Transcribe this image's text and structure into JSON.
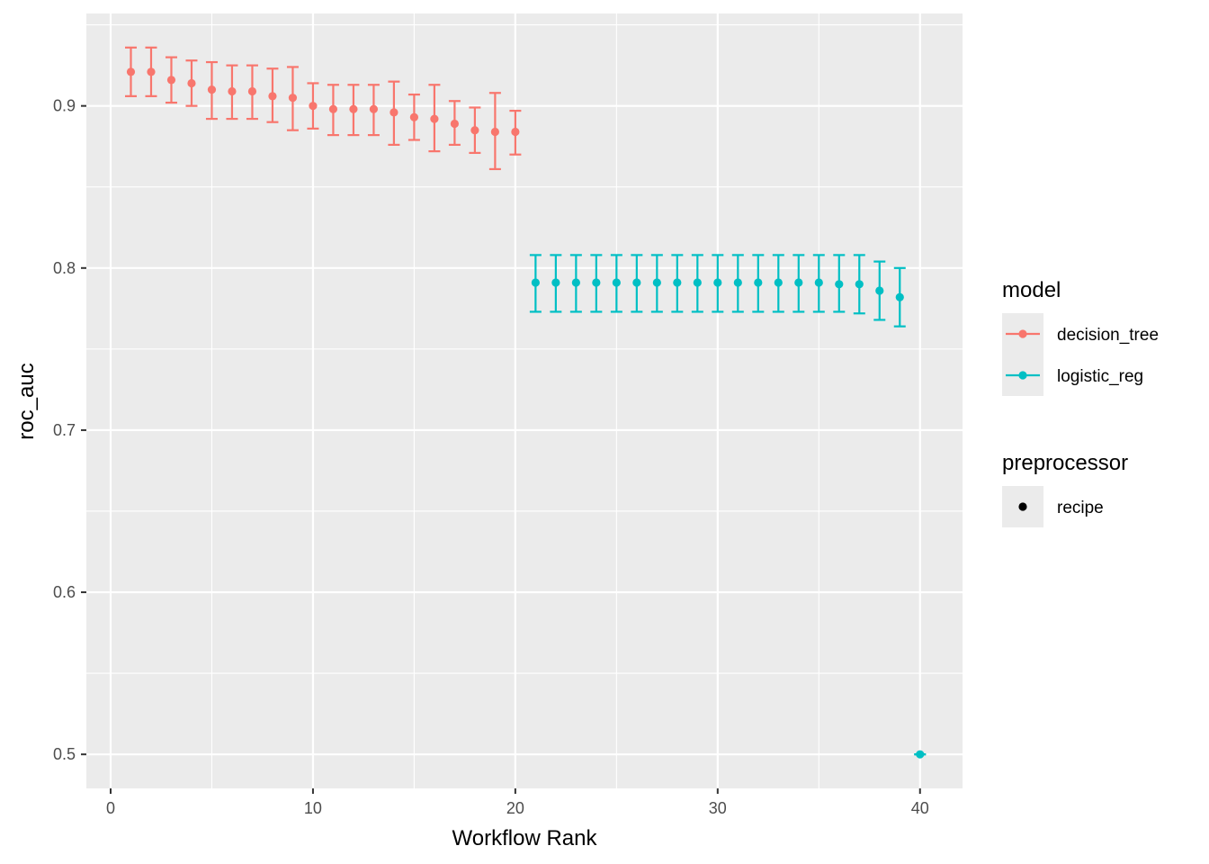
{
  "chart_data": {
    "type": "scatter",
    "title": "",
    "xlabel": "Workflow Rank",
    "ylabel": "roc_auc",
    "xlim": [
      -1.2,
      42.1
    ],
    "ylim": [
      0.479,
      0.957
    ],
    "x_ticks": [
      0,
      10,
      20,
      30,
      40
    ],
    "y_ticks": [
      0.5,
      0.6,
      0.7,
      0.8,
      0.9
    ],
    "x_tick_labels": [
      "0",
      "10",
      "20",
      "30",
      "40"
    ],
    "y_tick_labels": [
      "0.5",
      "0.6",
      "0.7",
      "0.8",
      "0.9"
    ],
    "grid": true,
    "legend_position": "right",
    "colors": {
      "decision_tree": "#F8766D",
      "logistic_reg": "#00BFC4",
      "panel_background": "#EBEBEB",
      "grid": "#FFFFFF"
    },
    "legends": [
      {
        "title": "model",
        "entries": [
          {
            "label": "decision_tree",
            "color": "#F8766D",
            "shape": "line-point"
          },
          {
            "label": "logistic_reg",
            "color": "#00BFC4",
            "shape": "line-point"
          }
        ]
      },
      {
        "title": "preprocessor",
        "entries": [
          {
            "label": "recipe",
            "color": "#000000",
            "shape": "point"
          }
        ]
      }
    ],
    "series": [
      {
        "name": "decision_tree",
        "color": "#F8766D",
        "points": [
          {
            "x": 1,
            "y": 0.921,
            "lo": 0.906,
            "hi": 0.936
          },
          {
            "x": 2,
            "y": 0.921,
            "lo": 0.906,
            "hi": 0.936
          },
          {
            "x": 3,
            "y": 0.916,
            "lo": 0.902,
            "hi": 0.93
          },
          {
            "x": 4,
            "y": 0.914,
            "lo": 0.9,
            "hi": 0.928
          },
          {
            "x": 5,
            "y": 0.91,
            "lo": 0.892,
            "hi": 0.927
          },
          {
            "x": 6,
            "y": 0.909,
            "lo": 0.892,
            "hi": 0.925
          },
          {
            "x": 7,
            "y": 0.909,
            "lo": 0.892,
            "hi": 0.925
          },
          {
            "x": 8,
            "y": 0.906,
            "lo": 0.89,
            "hi": 0.923
          },
          {
            "x": 9,
            "y": 0.905,
            "lo": 0.885,
            "hi": 0.924
          },
          {
            "x": 10,
            "y": 0.9,
            "lo": 0.886,
            "hi": 0.914
          },
          {
            "x": 11,
            "y": 0.898,
            "lo": 0.882,
            "hi": 0.913
          },
          {
            "x": 12,
            "y": 0.898,
            "lo": 0.882,
            "hi": 0.913
          },
          {
            "x": 13,
            "y": 0.898,
            "lo": 0.882,
            "hi": 0.913
          },
          {
            "x": 14,
            "y": 0.896,
            "lo": 0.876,
            "hi": 0.915
          },
          {
            "x": 15,
            "y": 0.893,
            "lo": 0.879,
            "hi": 0.907
          },
          {
            "x": 16,
            "y": 0.892,
            "lo": 0.872,
            "hi": 0.913
          },
          {
            "x": 17,
            "y": 0.889,
            "lo": 0.876,
            "hi": 0.903
          },
          {
            "x": 18,
            "y": 0.885,
            "lo": 0.871,
            "hi": 0.899
          },
          {
            "x": 19,
            "y": 0.884,
            "lo": 0.861,
            "hi": 0.908
          },
          {
            "x": 20,
            "y": 0.884,
            "lo": 0.87,
            "hi": 0.897
          }
        ]
      },
      {
        "name": "logistic_reg",
        "color": "#00BFC4",
        "points": [
          {
            "x": 21,
            "y": 0.791,
            "lo": 0.773,
            "hi": 0.808
          },
          {
            "x": 22,
            "y": 0.791,
            "lo": 0.773,
            "hi": 0.808
          },
          {
            "x": 23,
            "y": 0.791,
            "lo": 0.773,
            "hi": 0.808
          },
          {
            "x": 24,
            "y": 0.791,
            "lo": 0.773,
            "hi": 0.808
          },
          {
            "x": 25,
            "y": 0.791,
            "lo": 0.773,
            "hi": 0.808
          },
          {
            "x": 26,
            "y": 0.791,
            "lo": 0.773,
            "hi": 0.808
          },
          {
            "x": 27,
            "y": 0.791,
            "lo": 0.773,
            "hi": 0.808
          },
          {
            "x": 28,
            "y": 0.791,
            "lo": 0.773,
            "hi": 0.808
          },
          {
            "x": 29,
            "y": 0.791,
            "lo": 0.773,
            "hi": 0.808
          },
          {
            "x": 30,
            "y": 0.791,
            "lo": 0.773,
            "hi": 0.808
          },
          {
            "x": 31,
            "y": 0.791,
            "lo": 0.773,
            "hi": 0.808
          },
          {
            "x": 32,
            "y": 0.791,
            "lo": 0.773,
            "hi": 0.808
          },
          {
            "x": 33,
            "y": 0.791,
            "lo": 0.773,
            "hi": 0.808
          },
          {
            "x": 34,
            "y": 0.791,
            "lo": 0.773,
            "hi": 0.808
          },
          {
            "x": 35,
            "y": 0.791,
            "lo": 0.773,
            "hi": 0.808
          },
          {
            "x": 36,
            "y": 0.79,
            "lo": 0.773,
            "hi": 0.808
          },
          {
            "x": 37,
            "y": 0.79,
            "lo": 0.772,
            "hi": 0.808
          },
          {
            "x": 38,
            "y": 0.786,
            "lo": 0.768,
            "hi": 0.804
          },
          {
            "x": 39,
            "y": 0.782,
            "lo": 0.764,
            "hi": 0.8
          },
          {
            "x": 40,
            "y": 0.5,
            "lo": 0.5,
            "hi": 0.5
          }
        ]
      }
    ]
  }
}
